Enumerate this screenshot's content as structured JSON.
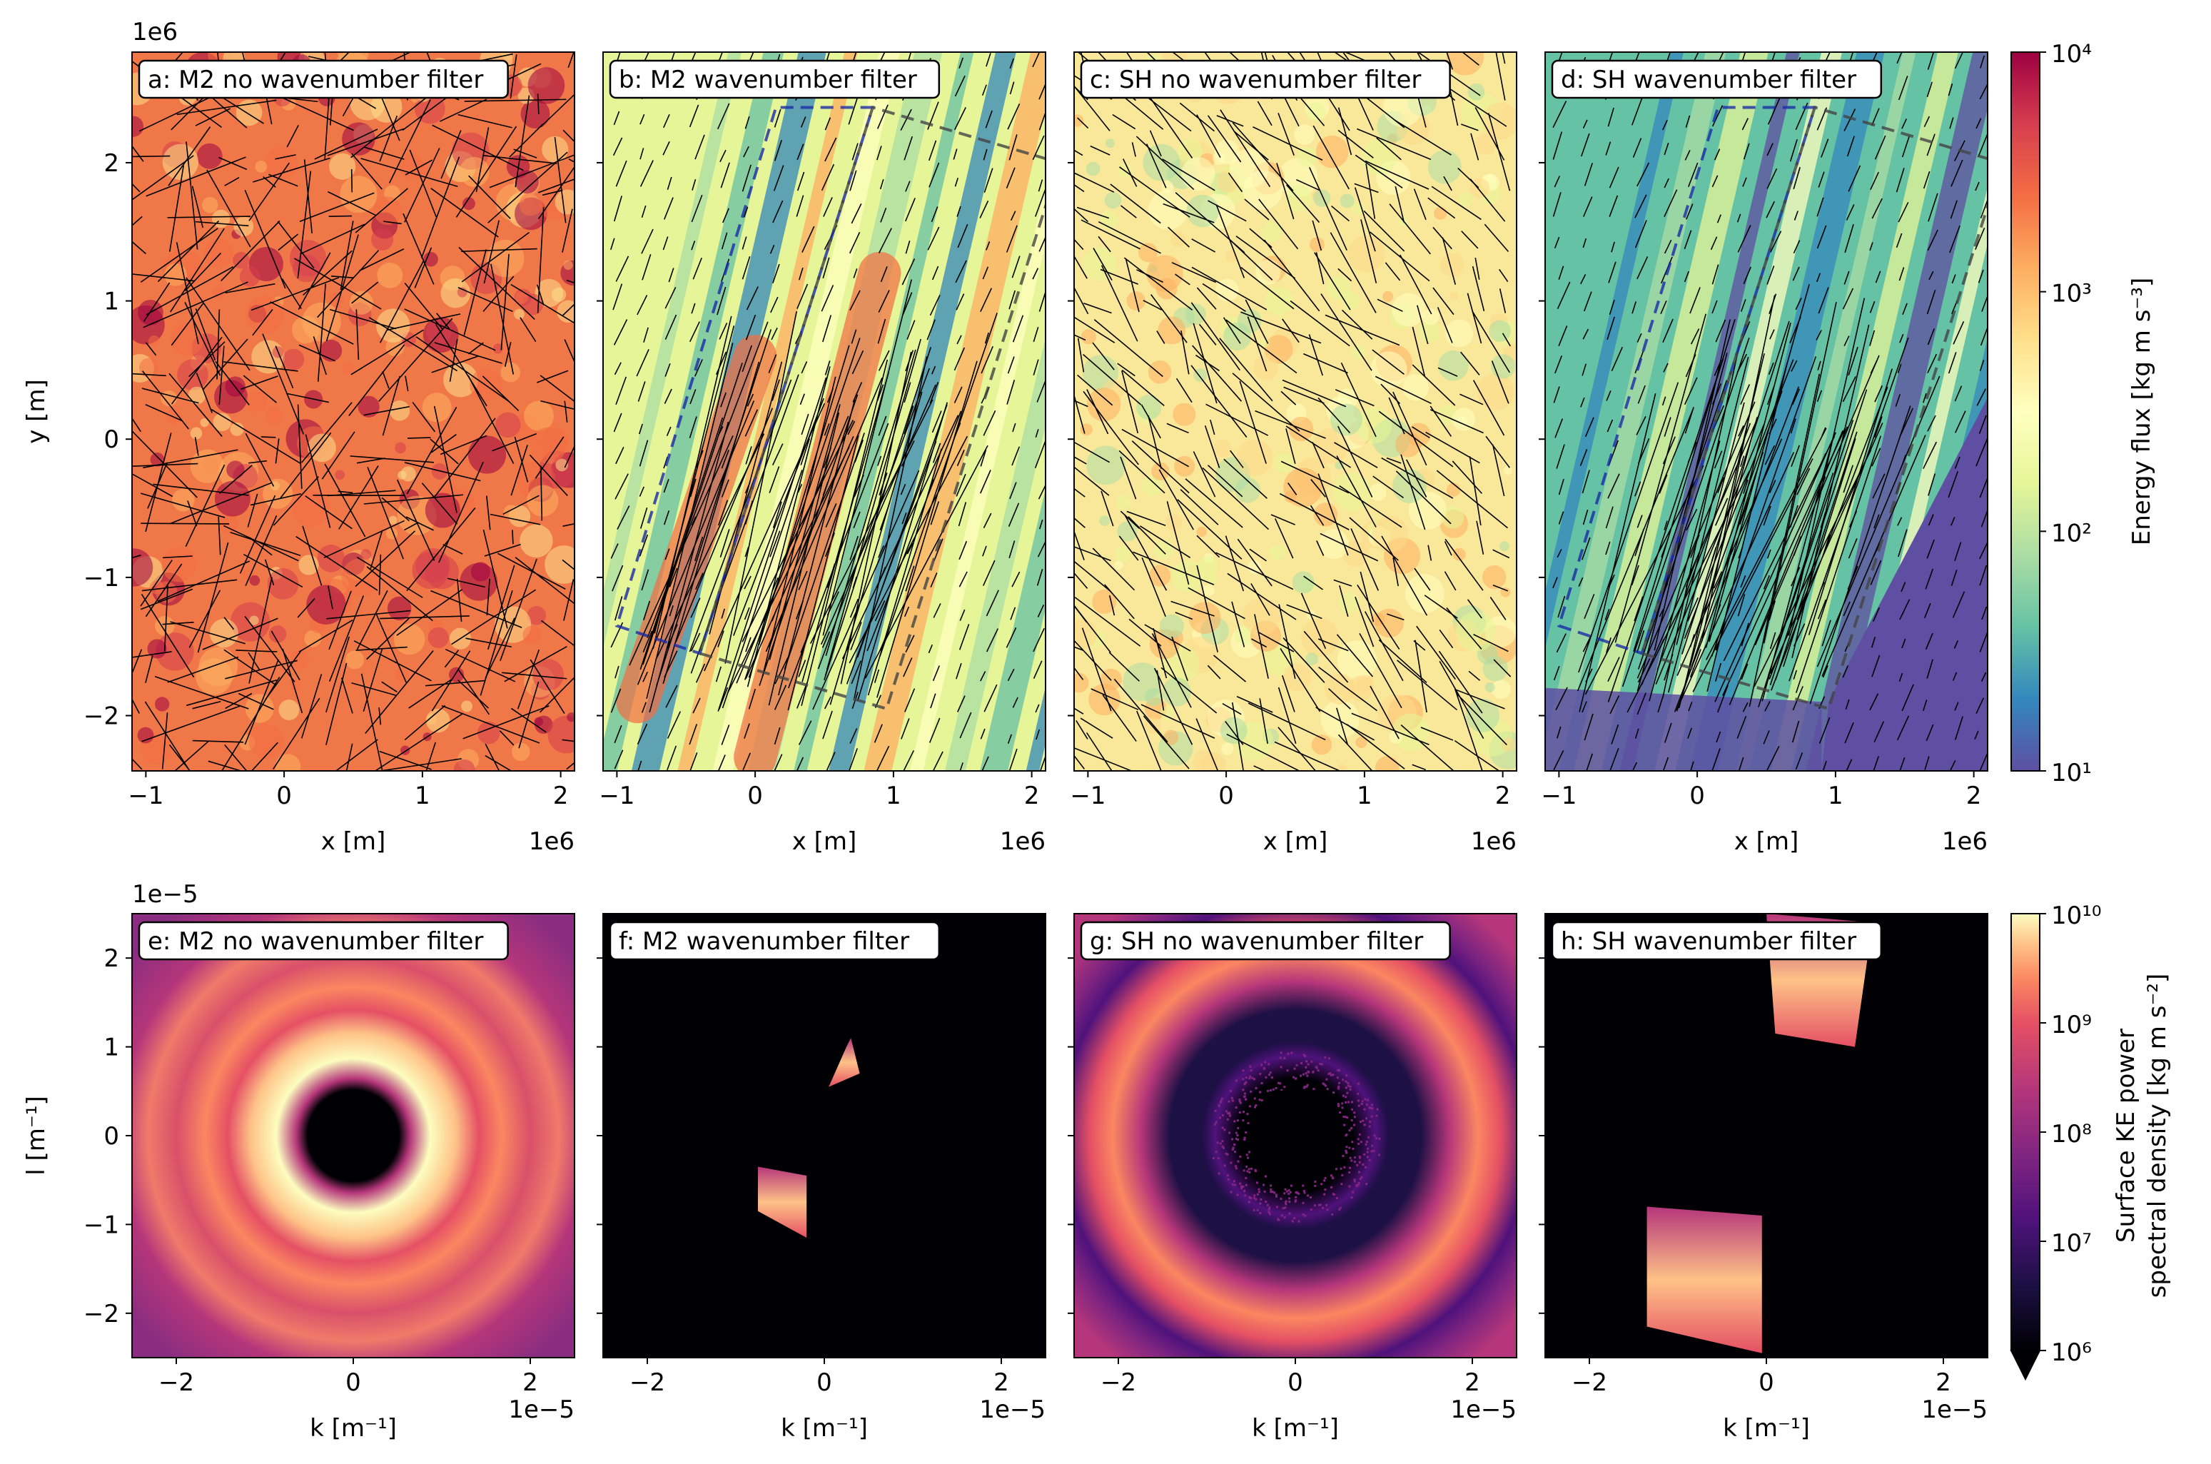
{
  "figure": {
    "top_row": {
      "xlabel": "x [m]",
      "ylabel": "y [m]",
      "x_offset": "1e6",
      "y_offset": "1e6",
      "xticks": [
        "−1",
        "0",
        "1",
        "2"
      ],
      "yticks": [
        "2",
        "1",
        "0",
        "−1",
        "−2"
      ],
      "colorbar": {
        "label": "Energy flux [kg m s⁻³]",
        "ticks": [
          "10⁴",
          "10³",
          "10²",
          "10¹"
        ]
      }
    },
    "bottom_row": {
      "xlabel": "k [m⁻¹]",
      "ylabel": "l [m⁻¹]",
      "x_offset": "1e−5",
      "y_offset": "1e−5",
      "xticks": [
        "−2",
        "0",
        "2"
      ],
      "yticks": [
        "2",
        "1",
        "0",
        "−1",
        "−2"
      ],
      "colorbar": {
        "label_line1": "Surface KE power",
        "label_line2": "spectral density [kg m s⁻²]",
        "ticks": [
          "10¹⁰",
          "10⁹",
          "10⁸",
          "10⁷",
          "10⁶"
        ]
      }
    }
  },
  "chart_data": [
    {
      "type": "heatmap",
      "panel": "a",
      "title": "a: M2 no wavenumber filter",
      "xlabel": "x [m]",
      "ylabel": "y [m]",
      "xlim": [
        -1100000.0,
        2100000.0
      ],
      "ylim": [
        -2400000.0,
        2800000.0
      ],
      "colormap": "Spectral_r",
      "colorscale": "log",
      "clim": [
        10,
        10000
      ],
      "overlay": "energy flux arrows"
    },
    {
      "type": "heatmap",
      "panel": "b",
      "title": "b: M2 wavenumber filter",
      "xlabel": "x [m]",
      "ylabel": "",
      "xlim": [
        -1100000.0,
        2100000.0
      ],
      "ylim": [
        -2400000.0,
        2800000.0
      ],
      "colormap": "Spectral_r",
      "colorscale": "log",
      "clim": [
        10,
        10000
      ],
      "overlay": "energy flux arrows, dashed boxes"
    },
    {
      "type": "heatmap",
      "panel": "c",
      "title": "c: SH no wavenumber filter",
      "xlabel": "x [m]",
      "ylabel": "",
      "xlim": [
        -1100000.0,
        2100000.0
      ],
      "ylim": [
        -2400000.0,
        2800000.0
      ],
      "colormap": "Spectral_r",
      "colorscale": "log",
      "clim": [
        10,
        10000
      ],
      "overlay": "energy flux arrows"
    },
    {
      "type": "heatmap",
      "panel": "d",
      "title": "d: SH wavenumber filter",
      "xlabel": "x [m]",
      "ylabel": "",
      "xlim": [
        -1100000.0,
        2100000.0
      ],
      "ylim": [
        -2400000.0,
        2800000.0
      ],
      "colormap": "Spectral_r",
      "colorscale": "log",
      "clim": [
        10,
        10000
      ],
      "overlay": "energy flux arrows, dashed boxes"
    },
    {
      "type": "heatmap",
      "panel": "e",
      "title": "e: M2 no wavenumber filter",
      "xlabel": "k [m⁻¹]",
      "ylabel": "l [m⁻¹]",
      "xlim": [
        -2.5e-05,
        2.5e-05
      ],
      "ylim": [
        -2.5e-05,
        2.5e-05
      ],
      "colormap": "magma",
      "colorscale": "log",
      "clim": [
        1000000.0,
        10000000000.0
      ]
    },
    {
      "type": "heatmap",
      "panel": "f",
      "title": "f: M2 wavenumber filter",
      "xlabel": "k [m⁻¹]",
      "ylabel": "",
      "xlim": [
        -2.5e-05,
        2.5e-05
      ],
      "ylim": [
        -2.5e-05,
        2.5e-05
      ],
      "colormap": "magma",
      "colorscale": "log",
      "clim": [
        1000000.0,
        10000000000.0
      ]
    },
    {
      "type": "heatmap",
      "panel": "g",
      "title": "g: SH no wavenumber filter",
      "xlabel": "k [m⁻¹]",
      "ylabel": "",
      "xlim": [
        -2.5e-05,
        2.5e-05
      ],
      "ylim": [
        -2.5e-05,
        2.5e-05
      ],
      "colormap": "magma",
      "colorscale": "log",
      "clim": [
        1000000.0,
        10000000000.0
      ]
    },
    {
      "type": "heatmap",
      "panel": "h",
      "title": "h: SH wavenumber filter",
      "xlabel": "k [m⁻¹]",
      "ylabel": "",
      "xlim": [
        -2.5e-05,
        2.5e-05
      ],
      "ylim": [
        -2.5e-05,
        2.5e-05
      ],
      "colormap": "magma",
      "colorscale": "log",
      "clim": [
        1000000.0,
        10000000000.0
      ]
    }
  ]
}
